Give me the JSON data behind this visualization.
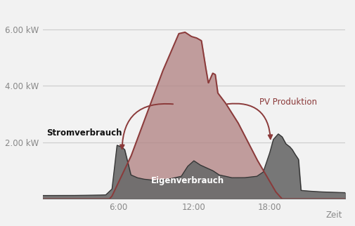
{
  "xlabel": "Zeit",
  "xlim": [
    0,
    24
  ],
  "ylim": [
    0,
    6.8
  ],
  "yticks": [
    2.0,
    4.0,
    6.0
  ],
  "ytick_labels": [
    "2.00 kW",
    "4.00 kW",
    "6.00 kW"
  ],
  "xticks": [
    6,
    12,
    18
  ],
  "xtick_labels": [
    "6:00",
    "12:00",
    "18:00"
  ],
  "bg_color": "#f2f2f2",
  "grid_color": "#cccccc",
  "pv_color": "#8b3a3a",
  "pv_fill_color": "#b08080",
  "consumption_fill_color": "#6a6a6a",
  "label_pv": "PV Produktion",
  "label_eigen": "Eigenverbrauch",
  "label_strom": "Stromverbrauch",
  "tick_color": "#888888"
}
